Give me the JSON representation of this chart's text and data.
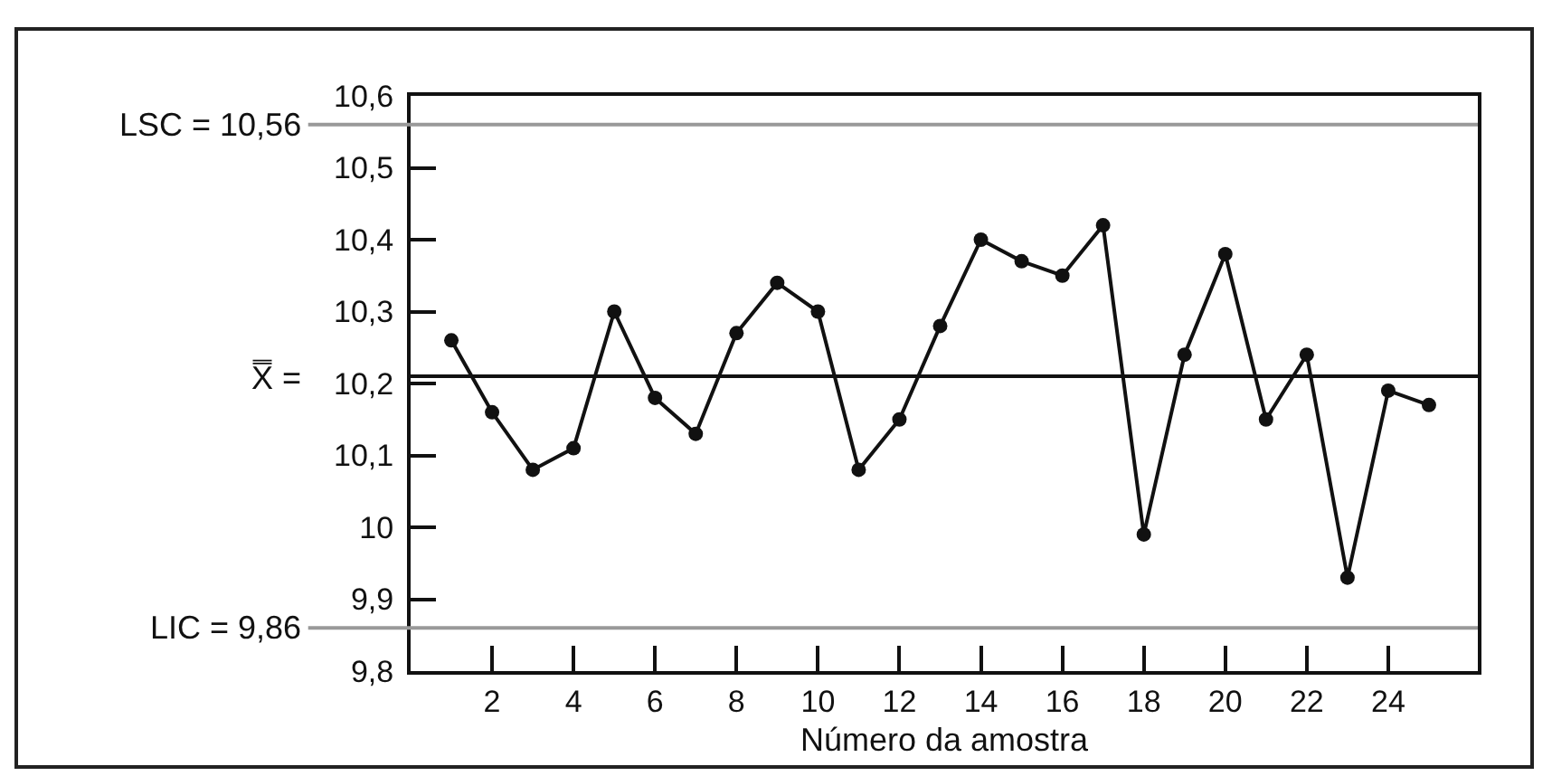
{
  "chart_data": {
    "type": "line",
    "xlabel": "Número da amostra",
    "x": [
      1,
      2,
      3,
      4,
      5,
      6,
      7,
      8,
      9,
      10,
      11,
      12,
      13,
      14,
      15,
      16,
      17,
      18,
      19,
      20,
      21,
      22,
      23,
      24,
      25
    ],
    "series": [
      {
        "color": "#111111",
        "values": [
          10.26,
          10.16,
          10.08,
          10.11,
          10.3,
          10.18,
          10.13,
          10.27,
          10.34,
          10.3,
          10.08,
          10.15,
          10.28,
          10.4,
          10.37,
          10.35,
          10.42,
          9.99,
          10.24,
          10.38,
          10.15,
          10.24,
          9.93,
          10.19,
          10.17
        ]
      }
    ],
    "marker": "circle",
    "line_style": "solid",
    "xlim": [
      0,
      26.2
    ],
    "xticks": [
      2,
      4,
      6,
      8,
      10,
      12,
      14,
      16,
      18,
      20,
      22,
      24
    ],
    "ylim": [
      9.8,
      10.6
    ],
    "yticks": [
      {
        "value": 9.8,
        "label": "9,8"
      },
      {
        "value": 9.9,
        "label": "9,9"
      },
      10,
      {
        "value": 10.1,
        "label": "10,1"
      },
      {
        "value": 10.2,
        "label": "10,2"
      },
      {
        "value": 10.3,
        "label": "10,3"
      },
      {
        "value": 10.4,
        "label": "10,4"
      },
      {
        "value": 10.5,
        "label": "10,5"
      },
      {
        "value": 10.6,
        "label": "10,6"
      }
    ],
    "ref_lines": [
      {
        "axis": "y",
        "value": 10.56,
        "label": "LSC = 10,56",
        "color": "#999999"
      },
      {
        "axis": "y",
        "value": 10.21,
        "label": "X̿ =",
        "color": "#111111"
      },
      {
        "axis": "y",
        "value": 9.86,
        "label": "LIC = 9,86",
        "color": "#999999"
      }
    ],
    "tick_labels": "xy"
  }
}
